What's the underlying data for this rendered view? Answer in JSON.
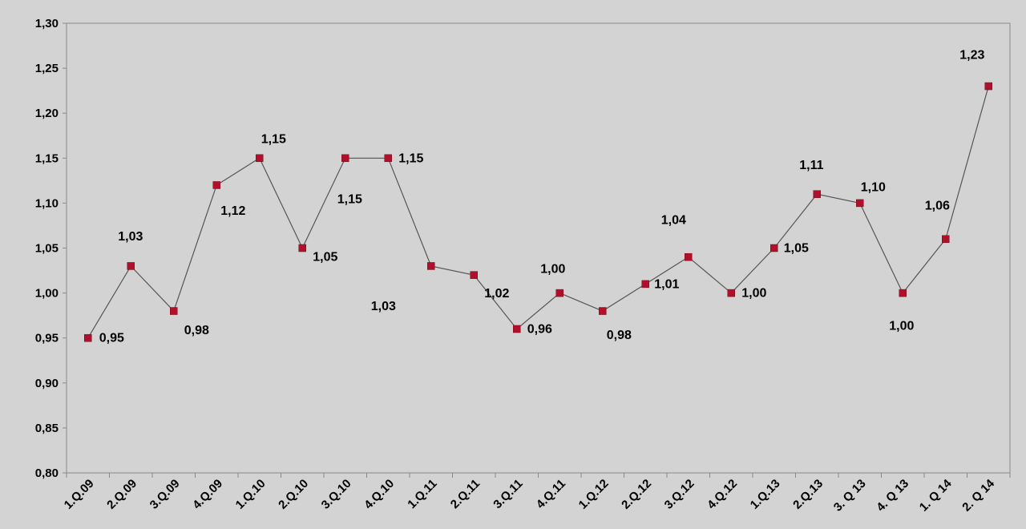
{
  "chart_data": {
    "type": "line",
    "title": "",
    "xlabel": "",
    "ylabel": "",
    "categories": [
      "1.Q.09",
      "2.Q.09",
      "3.Q.09",
      "4.Q.09",
      "1.Q.10",
      "2.Q.10",
      "3.Q.10",
      "4.Q.10",
      "1.Q.11",
      "2.Q.11",
      "3.Q.11",
      "4.Q.11",
      "1.Q.12",
      "2.Q.12",
      "3.Q.12",
      "4.Q.12",
      "1.Q.13",
      "2.Q.13",
      "3. Q 13",
      "4. Q 13",
      "1. Q 14",
      "2. Q 14"
    ],
    "values": [
      0.95,
      1.03,
      0.98,
      1.12,
      1.15,
      1.05,
      1.15,
      1.15,
      1.03,
      1.02,
      0.96,
      1.0,
      0.98,
      1.01,
      1.04,
      1.0,
      1.05,
      1.11,
      1.1,
      1.0,
      1.06,
      1.23
    ],
    "data_labels": [
      "0,95",
      "1,03",
      "0,98",
      "1,12",
      "1,15",
      "1,05",
      "1,15",
      "1,15",
      "1,03",
      "1,02",
      "0,96",
      "1,00",
      "0,98",
      "1,01",
      "1,04",
      "1,00",
      "1,05",
      "1,11",
      "1,10",
      "1,00",
      "1,06",
      "1,23"
    ],
    "ylim": [
      0.8,
      1.3
    ],
    "yticks": [
      "0,80",
      "0,85",
      "0,90",
      "0,95",
      "1,00",
      "1,05",
      "1,10",
      "1,15",
      "1,20",
      "1,25",
      "1,30"
    ],
    "grid": false,
    "legend": "none",
    "colors": {
      "background": "#d3d3d3",
      "line": "#555555",
      "marker": "#b0102a",
      "axis": "#888888"
    }
  }
}
